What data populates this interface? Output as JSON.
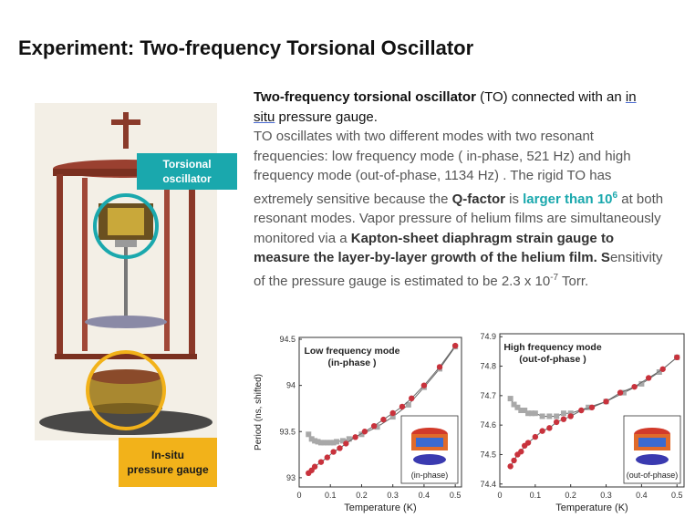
{
  "page": {
    "title": "Experiment: Two-frequency Torsional Oscillator"
  },
  "callouts": {
    "torsional_line1": "Torsional",
    "torsional_line2": "oscillator",
    "gauge_line1": "In-situ",
    "gauge_line2": "pressure gauge"
  },
  "text": {
    "lead_bold": "Two-frequency torsional oscillator",
    "lead_mid": " (TO) connected with an ",
    "lead_in": "in",
    "lead_situ": "situ",
    "lead_end": " pressure gauge.",
    "p1": "TO oscillates with two different modes with two resonant frequencies: low frequency mode ( in-phase, 521 Hz) and high frequency mode (out-of-phase,  1134 Hz) . The rigid TO has extremely sensitive because the ",
    "qfactor": "Q-factor",
    "is": " is ",
    "larger": "larger than 10",
    "larger_sup": "6",
    "p2": " at both resonant modes. Vapor pressure of helium films are simultaneously monitored via a ",
    "kapton": "Kapton-sheet diaphragm strain gauge to measure the layer-by-layer growth of the helium film. S",
    "p3": "ensitivity of the pressure gauge is estimated to be 2.3 x 10",
    "exp": "-7",
    "torr": " Torr."
  },
  "chart_data": [
    {
      "type": "scatter",
      "title_line1": "Low frequency mode",
      "title_line2": "(in-phase )",
      "xlabel": "Temperature (K)",
      "ylabel": "Period (ns, shifted)",
      "xlim": [
        0,
        0.52
      ],
      "ylim": [
        92.9,
        94.52
      ],
      "xticks": [
        "0",
        "0.1",
        "0.2",
        "0.3",
        "0.4",
        "0.5"
      ],
      "yticks": [
        "93",
        "93.5",
        "94",
        "94.5"
      ],
      "ytick_values": [
        93,
        93.5,
        94,
        94.5
      ],
      "inset_label": "(in-phase)",
      "series": [
        {
          "color": "#c8323c",
          "x": [
            0.03,
            0.04,
            0.05,
            0.07,
            0.09,
            0.11,
            0.13,
            0.15,
            0.18,
            0.21,
            0.24,
            0.27,
            0.3,
            0.33,
            0.36,
            0.4,
            0.45,
            0.5
          ],
          "y": [
            93.05,
            93.08,
            93.12,
            93.17,
            93.22,
            93.28,
            93.32,
            93.37,
            93.44,
            93.5,
            93.56,
            93.63,
            93.7,
            93.77,
            93.86,
            94,
            94.2,
            94.43
          ]
        },
        {
          "color": "#a8a8a8",
          "x": [
            0.03,
            0.04,
            0.05,
            0.06,
            0.07,
            0.08,
            0.09,
            0.1,
            0.11,
            0.12,
            0.14,
            0.16,
            0.2,
            0.25,
            0.3,
            0.35,
            0.4,
            0.45,
            0.5
          ],
          "y": [
            93.47,
            93.42,
            93.4,
            93.39,
            93.38,
            93.38,
            93.38,
            93.38,
            93.38,
            93.39,
            93.4,
            93.42,
            93.47,
            93.55,
            93.66,
            93.79,
            93.98,
            94.18,
            94.42
          ]
        }
      ]
    },
    {
      "type": "scatter",
      "title_line1": "High frequency mode",
      "title_line2": "(out-of-phase )",
      "xlabel": "Temperature (K)",
      "ylabel": "",
      "xlim": [
        0,
        0.52
      ],
      "ylim": [
        74.39,
        74.91
      ],
      "xticks": [
        "0",
        "0.1",
        "0.2",
        "0.3",
        "0.4",
        "0.5"
      ],
      "yticks": [
        "74.4",
        "74.5",
        "74.6",
        "74.7",
        "74.8",
        "74.9"
      ],
      "ytick_values": [
        74.4,
        74.5,
        74.6,
        74.7,
        74.8,
        74.9
      ],
      "inset_label": "(out-of-phase)",
      "series": [
        {
          "color": "#c8323c",
          "x": [
            0.03,
            0.04,
            0.05,
            0.06,
            0.07,
            0.08,
            0.1,
            0.12,
            0.14,
            0.16,
            0.18,
            0.2,
            0.23,
            0.26,
            0.3,
            0.34,
            0.38,
            0.42,
            0.46,
            0.5
          ],
          "y": [
            74.46,
            74.48,
            74.5,
            74.51,
            74.53,
            74.54,
            74.56,
            74.58,
            74.59,
            74.61,
            74.62,
            74.63,
            74.65,
            74.66,
            74.68,
            74.71,
            74.73,
            74.76,
            74.79,
            74.83
          ]
        },
        {
          "color": "#a8a8a8",
          "x": [
            0.03,
            0.04,
            0.05,
            0.06,
            0.07,
            0.08,
            0.09,
            0.1,
            0.12,
            0.14,
            0.16,
            0.18,
            0.2,
            0.25,
            0.3,
            0.35,
            0.4,
            0.45,
            0.5
          ],
          "y": [
            74.69,
            74.67,
            74.66,
            74.65,
            74.65,
            74.64,
            74.64,
            74.64,
            74.63,
            74.63,
            74.63,
            74.64,
            74.64,
            74.66,
            74.68,
            74.71,
            74.74,
            74.78,
            74.83
          ]
        }
      ]
    }
  ]
}
